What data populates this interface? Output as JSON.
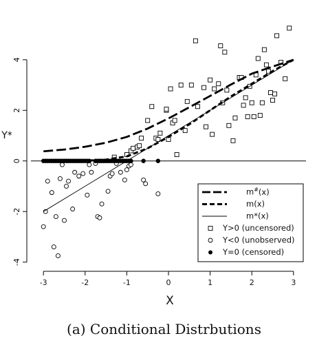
{
  "chart_data": {
    "type": "scatter",
    "title": "",
    "xlabel": "X",
    "ylabel": "Y*",
    "xlim": [
      -3.3,
      3.3
    ],
    "ylim": [
      -4.2,
      5.6
    ],
    "xticks": [
      "-3",
      "-2",
      "-1",
      "0",
      "1",
      "2",
      "3"
    ],
    "yticks": [
      "-4",
      "-2",
      "0",
      "2",
      "4"
    ],
    "grid": false,
    "legend_position": "bottom-right",
    "legend": [
      "m#(x)",
      "m(x)",
      "m*(x)",
      "Y>0 (uncensored)",
      "Y<0 (unobserved)",
      "Y=0 (censored)"
    ],
    "series": [
      {
        "name": "m#(x)",
        "kind": "line",
        "style": "long-dash",
        "x": [
          -3,
          -2.5,
          -2,
          -1.5,
          -1,
          -0.5,
          0,
          0.5,
          1,
          1.5,
          2,
          2.5,
          3
        ],
        "y": [
          0.38,
          0.45,
          0.56,
          0.72,
          0.95,
          1.28,
          1.68,
          2.12,
          2.57,
          3.02,
          3.45,
          3.73,
          4.0
        ]
      },
      {
        "name": "m(x)",
        "kind": "line",
        "style": "short-dash",
        "x": [
          -3,
          -2,
          -1.5,
          -1,
          -0.5,
          0,
          0.5,
          1,
          1.5,
          2,
          2.5,
          3
        ],
        "y": [
          0.0,
          0.01,
          0.05,
          0.18,
          0.5,
          0.95,
          1.45,
          2.0,
          2.55,
          3.05,
          3.55,
          4.0
        ]
      },
      {
        "name": "m*(x)",
        "kind": "line",
        "style": "solid",
        "x": [
          -3,
          3
        ],
        "y": [
          -2.0,
          4.0
        ]
      },
      {
        "name": "Y>0 (uncensored)",
        "kind": "points",
        "marker": "square",
        "x": [
          -1.3,
          -1.0,
          -0.9,
          -0.85,
          -0.75,
          -0.7,
          -0.65,
          -0.5,
          -0.4,
          -0.3,
          -0.25,
          -0.2,
          -0.05,
          -0.05,
          0.0,
          0.05,
          0.1,
          0.15,
          0.2,
          0.3,
          0.4,
          0.45,
          0.55,
          0.65,
          0.7,
          0.85,
          0.9,
          1.0,
          1.05,
          1.1,
          1.2,
          1.25,
          1.3,
          1.35,
          1.4,
          1.45,
          1.55,
          1.6,
          1.7,
          1.75,
          1.8,
          1.85,
          1.9,
          1.95,
          2.0,
          2.05,
          2.1,
          2.15,
          2.2,
          2.25,
          2.3,
          2.35,
          2.4,
          2.45,
          2.5,
          2.55,
          2.6,
          2.7,
          2.8,
          2.9
        ],
        "y": [
          0.15,
          0.25,
          0.4,
          0.5,
          0.55,
          0.6,
          0.9,
          1.6,
          2.15,
          0.9,
          0.85,
          1.1,
          2.0,
          2.05,
          0.85,
          2.85,
          1.5,
          1.6,
          0.25,
          3.0,
          1.2,
          2.35,
          3.0,
          4.75,
          2.15,
          2.9,
          1.35,
          3.2,
          1.05,
          2.85,
          3.05,
          4.55,
          2.3,
          4.3,
          2.8,
          1.4,
          0.8,
          1.7,
          3.3,
          3.3,
          2.2,
          2.5,
          1.75,
          2.95,
          2.3,
          1.75,
          3.4,
          4.05,
          1.8,
          2.3,
          4.4,
          3.8,
          3.55,
          2.7,
          2.4,
          2.65,
          4.95,
          3.9,
          3.25,
          5.25
        ]
      },
      {
        "name": "Y<0 (unobserved)",
        "kind": "points",
        "marker": "open-circle",
        "x": [
          -3.0,
          -2.95,
          -2.9,
          -2.8,
          -2.75,
          -2.7,
          -2.65,
          -2.6,
          -2.55,
          -2.5,
          -2.45,
          -2.4,
          -2.3,
          -2.25,
          -2.15,
          -2.05,
          -1.95,
          -1.9,
          -1.85,
          -1.75,
          -1.7,
          -1.65,
          -1.6,
          -1.45,
          -1.4,
          -1.35,
          -1.25,
          -1.15,
          -1.05,
          -1.0,
          -0.95,
          -0.9,
          -0.6,
          -0.55,
          -0.25
        ],
        "y": [
          -2.6,
          -2.0,
          -0.8,
          -1.25,
          -3.4,
          -2.2,
          -3.75,
          -0.7,
          -0.15,
          -2.35,
          -1.0,
          -0.8,
          -1.9,
          -0.45,
          -0.6,
          -0.5,
          -1.35,
          -0.15,
          -0.45,
          -0.1,
          -2.2,
          -2.25,
          -1.7,
          -1.2,
          -0.6,
          -0.5,
          -0.1,
          -0.45,
          -0.75,
          -0.35,
          -0.2,
          -0.15,
          -0.75,
          -0.9,
          -1.3
        ]
      },
      {
        "name": "Y=0 (censored)",
        "kind": "points",
        "marker": "filled-circle",
        "x": [
          -3.0,
          -2.95,
          -2.9,
          -2.85,
          -2.8,
          -2.75,
          -2.7,
          -2.65,
          -2.6,
          -2.55,
          -2.5,
          -2.45,
          -2.4,
          -2.35,
          -2.3,
          -2.25,
          -2.2,
          -2.15,
          -2.1,
          -2.05,
          -2.0,
          -1.95,
          -1.9,
          -1.75,
          -1.7,
          -1.65,
          -1.6,
          -1.55,
          -1.5,
          -1.45,
          -1.4,
          -1.35,
          -1.3,
          -1.25,
          -1.2,
          -1.15,
          -1.1,
          -1.05,
          -1.0,
          -0.95,
          -0.9,
          -0.6,
          -0.25
        ],
        "y": [
          0,
          0,
          0,
          0,
          0,
          0,
          0,
          0,
          0,
          0,
          0,
          0,
          0,
          0,
          0,
          0,
          0,
          0,
          0,
          0,
          0,
          0,
          0,
          0,
          0,
          0,
          0,
          0,
          0,
          0,
          0,
          0,
          0,
          0,
          0,
          0,
          0,
          0,
          0,
          0,
          0,
          0,
          0
        ]
      }
    ]
  },
  "caption": "(a) Conditional Distrbutions"
}
